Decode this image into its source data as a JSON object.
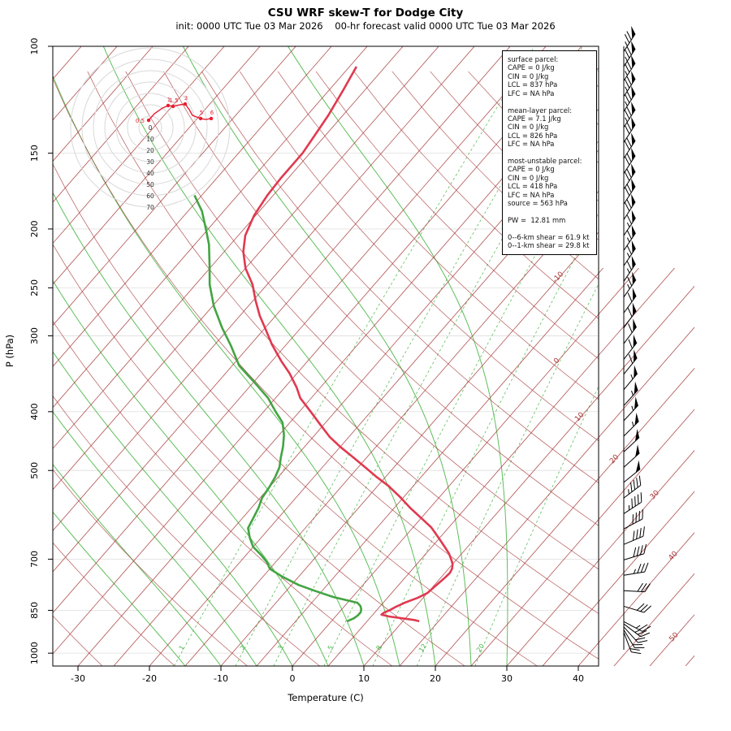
{
  "header": {
    "title": "CSU WRF skew-T for Dodge City",
    "subtitle": "init: 0000 UTC Tue 03 Mar 2026    00-hr forecast valid 0000 UTC Tue 03 Mar 2026"
  },
  "info_box": {
    "lines": [
      "surface parcel:",
      "CAPE = 0 J/kg",
      "CIN = 0 J/kg",
      "LCL = 837 hPa",
      "LFC = NA hPa",
      "",
      "mean-layer parcel:",
      "CAPE = 7.1 J/kg",
      "CIN = 0 J/kg",
      "LCL = 826 hPa",
      "LFC = NA hPa",
      "",
      "most-unstable parcel:",
      "CAPE = 0 J/kg",
      "CIN = 0 J/kg",
      "LCL = 418 hPa",
      "LFC = NA hPa",
      "source = 563 hPa",
      "",
      "PW =  12.81 mm",
      "",
      "0--6-km shear = 61.9 kt",
      "0--1-km shear = 29.8 kt"
    ]
  },
  "chart_data": {
    "type": "skewt-log-p",
    "title": "CSU WRF skew-T for Dodge City",
    "xlabel": "Temperature (C)",
    "ylabel": "P (hPa)",
    "x_ticks": [
      -30,
      -20,
      -10,
      0,
      10,
      20,
      30,
      40
    ],
    "p_ticks": [
      100,
      150,
      200,
      250,
      300,
      400,
      500,
      700,
      850,
      1000
    ],
    "p_range": [
      100,
      1050
    ],
    "isotherm_step": 5,
    "isotherm_labels": [
      -10,
      0,
      10,
      20,
      30,
      40,
      50
    ],
    "mixing_ratio_lines": [
      1,
      2,
      3,
      5,
      8,
      12,
      20
    ],
    "moist_adiabats_thetaw": [
      -15,
      -10,
      -5,
      0,
      5,
      10,
      15,
      20,
      25,
      30
    ],
    "dry_adiabats_theta": {
      "min": -40,
      "max": 200,
      "step": 10
    },
    "temperature_profile": [
      [
        108,
        -64
      ],
      [
        118,
        -63
      ],
      [
        130,
        -62
      ],
      [
        150,
        -61
      ],
      [
        165,
        -61
      ],
      [
        176,
        -60.8
      ],
      [
        190,
        -60.2
      ],
      [
        205,
        -59
      ],
      [
        218,
        -57.3
      ],
      [
        232,
        -55
      ],
      [
        247,
        -52
      ],
      [
        262,
        -49.7
      ],
      [
        278,
        -47.2
      ],
      [
        291,
        -45
      ],
      [
        310,
        -42
      ],
      [
        330,
        -38.7
      ],
      [
        346,
        -36
      ],
      [
        365,
        -33.3
      ],
      [
        380,
        -31.5
      ],
      [
        400,
        -28.4
      ],
      [
        420,
        -25.5
      ],
      [
        440,
        -22.7
      ],
      [
        457,
        -20
      ],
      [
        475,
        -17
      ],
      [
        494,
        -14
      ],
      [
        512,
        -11.3
      ],
      [
        530,
        -8.5
      ],
      [
        553,
        -5.5
      ],
      [
        576,
        -2.8
      ],
      [
        598,
        -0.1
      ],
      [
        620,
        2.5
      ],
      [
        645,
        4.8
      ],
      [
        668,
        6.8
      ],
      [
        685,
        8.2
      ],
      [
        700,
        9.2
      ],
      [
        713,
        10
      ],
      [
        726,
        10.5
      ],
      [
        738,
        10.7
      ],
      [
        750,
        10.6
      ],
      [
        765,
        10.4
      ],
      [
        780,
        10.2
      ],
      [
        796,
        10
      ],
      [
        811,
        9.2
      ],
      [
        826,
        8
      ],
      [
        840,
        7.2
      ],
      [
        850,
        6.8
      ],
      [
        858,
        6.3
      ],
      [
        864,
        6.2
      ],
      [
        870,
        7.5
      ],
      [
        876,
        9.5
      ],
      [
        882,
        11.5
      ],
      [
        886,
        12.3
      ]
    ],
    "dewpoint_profile": [
      [
        176,
        -71
      ],
      [
        187,
        -68
      ],
      [
        200,
        -65.3
      ],
      [
        212,
        -63
      ],
      [
        230,
        -60.3
      ],
      [
        247,
        -58
      ],
      [
        268,
        -54.8
      ],
      [
        291,
        -51
      ],
      [
        312,
        -47.5
      ],
      [
        336,
        -44
      ],
      [
        357,
        -40
      ],
      [
        380,
        -36
      ],
      [
        400,
        -33.3
      ],
      [
        417,
        -31
      ],
      [
        437,
        -29.3
      ],
      [
        457,
        -28
      ],
      [
        476,
        -27
      ],
      [
        494,
        -26
      ],
      [
        513,
        -25.4
      ],
      [
        533,
        -25
      ],
      [
        555,
        -24.7
      ],
      [
        576,
        -24
      ],
      [
        598,
        -23.5
      ],
      [
        622,
        -23
      ],
      [
        645,
        -21.6
      ],
      [
        668,
        -20
      ],
      [
        690,
        -17.8
      ],
      [
        708,
        -16.2
      ],
      [
        726,
        -15
      ],
      [
        748,
        -12.3
      ],
      [
        772,
        -9
      ],
      [
        790,
        -5.9
      ],
      [
        808,
        -2.7
      ],
      [
        818,
        -0.4
      ],
      [
        826,
        1.4
      ],
      [
        836,
        2.2
      ],
      [
        846,
        2.7
      ],
      [
        856,
        3
      ],
      [
        866,
        3
      ],
      [
        876,
        2.8
      ],
      [
        886,
        2.2
      ]
    ],
    "wind_barbs": [
      [
        102,
        33,
        78
      ],
      [
        108,
        33,
        77
      ],
      [
        114,
        33,
        77
      ],
      [
        121,
        33,
        76
      ],
      [
        128,
        33,
        76
      ],
      [
        136,
        33,
        75
      ],
      [
        144,
        33,
        74
      ],
      [
        153,
        33,
        73
      ],
      [
        162,
        33,
        72
      ],
      [
        172,
        33,
        71
      ],
      [
        182,
        33,
        71
      ],
      [
        193,
        33,
        70
      ],
      [
        205,
        34,
        69
      ],
      [
        217,
        34,
        68
      ],
      [
        230,
        34,
        67
      ],
      [
        244,
        34,
        67
      ],
      [
        259,
        35,
        66
      ],
      [
        275,
        36,
        64
      ],
      [
        291,
        36,
        63
      ],
      [
        309,
        37,
        62
      ],
      [
        328,
        38,
        61
      ],
      [
        347,
        39,
        60
      ],
      [
        368,
        40,
        59
      ],
      [
        391,
        42,
        57
      ],
      [
        414,
        43,
        56
      ],
      [
        439,
        45,
        55
      ],
      [
        466,
        47,
        54
      ],
      [
        494,
        48,
        52
      ],
      [
        523,
        51,
        50
      ],
      [
        555,
        53,
        49
      ],
      [
        589,
        57,
        47
      ],
      [
        624,
        62,
        44
      ],
      [
        662,
        67,
        42
      ],
      [
        702,
        73,
        40
      ],
      [
        744,
        81,
        37
      ],
      [
        789,
        93,
        34
      ],
      [
        837,
        107,
        30
      ],
      [
        887,
        118,
        26
      ],
      [
        895,
        127,
        25
      ],
      [
        905,
        138,
        24
      ],
      [
        915,
        149,
        22
      ],
      [
        924,
        159,
        20
      ]
    ],
    "hodograph": {
      "ring_step_kt": 10,
      "ring_labels": [
        "0",
        "10",
        "20",
        "30",
        "40",
        "50",
        "60",
        "70"
      ],
      "trace_uv_kt": [
        [
          -1.4,
          6.4
        ],
        [
          3.6,
          12.1
        ],
        [
          10.7,
          17.1
        ],
        [
          15.7,
          19.3
        ],
        [
          20,
          18.6
        ],
        [
          26.4,
          20
        ],
        [
          30.7,
          20.7
        ],
        [
          34.3,
          15.7
        ],
        [
          37.1,
          10.7
        ],
        [
          44.3,
          7.9
        ],
        [
          48.6,
          7.1
        ],
        [
          53.6,
          7.9
        ]
      ],
      "marked_points": [
        {
          "u": -1.4,
          "v": 6.4,
          "label": "0.5"
        },
        {
          "u": 15.7,
          "v": 19.3,
          "label": "1"
        },
        {
          "u": 20,
          "v": 18.6,
          "label": "1.5"
        },
        {
          "u": 30.7,
          "v": 20.7,
          "label": "3"
        },
        {
          "u": 44.3,
          "v": 7.9,
          "label": "5"
        },
        {
          "u": 53.6,
          "v": 7.9,
          "label": "6"
        }
      ]
    },
    "colors": {
      "isotherm": "#a93c3c",
      "dry_adiabat": "#a93c3c",
      "moist_adiabat": "#4cb848",
      "mixing_ratio": "#4cb848",
      "temperature_trace": "#e0394f",
      "dewpoint_trace": "#43a443",
      "grid": "#e2e2e2",
      "barb": "#000000",
      "hodo_ring": "#d8d8d8",
      "hodo_trace": "#e81c2e",
      "frame": "#000000"
    }
  }
}
